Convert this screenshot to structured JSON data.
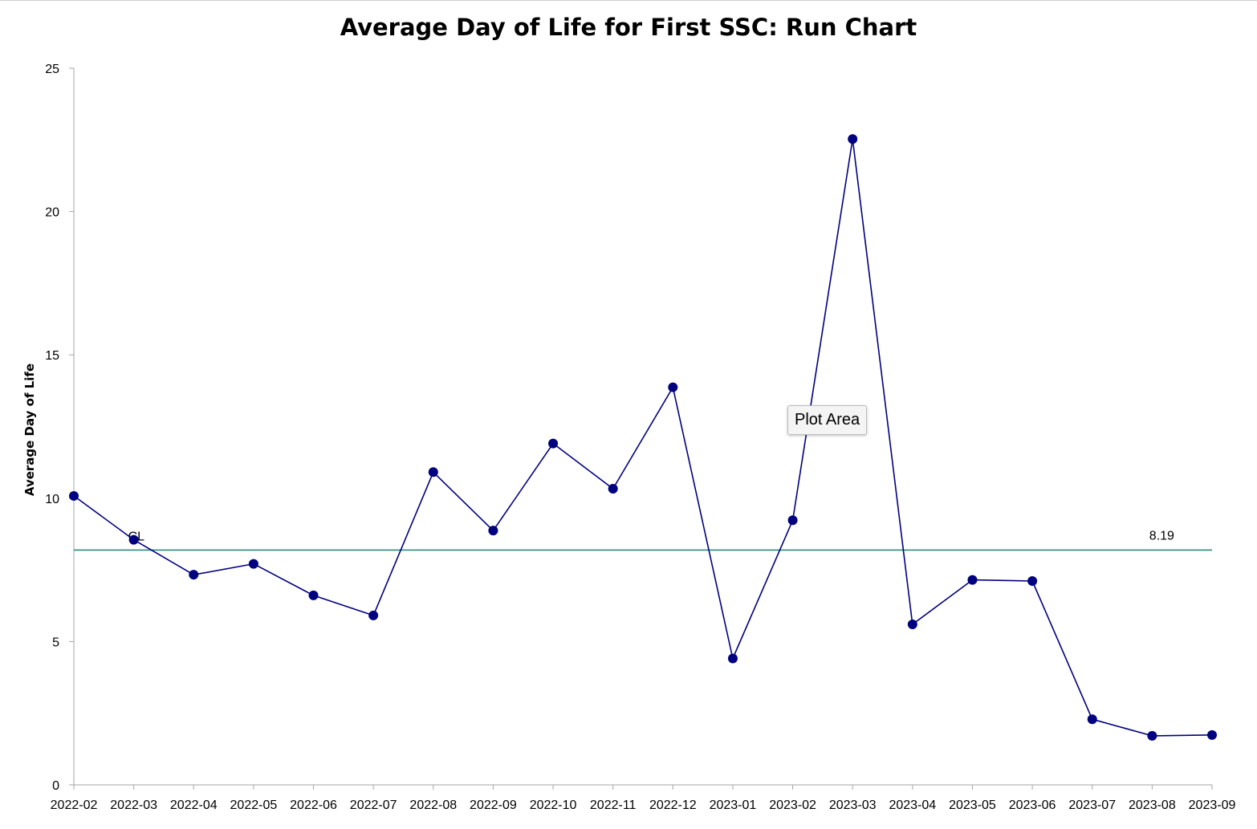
{
  "chart_data": {
    "type": "line",
    "title": "Average Day of Life for First SSC: Run Chart",
    "xlabel": "",
    "ylabel": "Average Day of Life",
    "categories": [
      "2022-02",
      "2022-03",
      "2022-04",
      "2022-05",
      "2022-06",
      "2022-07",
      "2022-08",
      "2022-09",
      "2022-10",
      "2022-11",
      "2022-12",
      "2023-01",
      "2023-02",
      "2023-03",
      "2023-04",
      "2023-05",
      "2023-06",
      "2023-07",
      "2023-08",
      "2023-09"
    ],
    "series": [
      {
        "values": [
          10.08,
          8.55,
          7.33,
          7.71,
          6.61,
          5.91,
          10.91,
          8.87,
          11.91,
          10.33,
          13.87,
          4.41,
          9.23,
          22.53,
          5.6,
          7.15,
          7.11,
          2.29,
          1.71,
          1.74
        ],
        "color": "#000080"
      }
    ],
    "center_line": {
      "label": "CL",
      "value": 8.19,
      "value_label": "8.19",
      "color": "#2e8b7a"
    },
    "ylim": [
      0,
      25
    ],
    "yticks": [
      0,
      5,
      10,
      15,
      20,
      25
    ],
    "grid": false,
    "legend": "none"
  },
  "tooltip": {
    "text": "Plot Area"
  },
  "colors": {
    "axis": "#a6a6a6",
    "marker": "#000080",
    "line": "#000080",
    "center_line": "#2e8b7a"
  }
}
